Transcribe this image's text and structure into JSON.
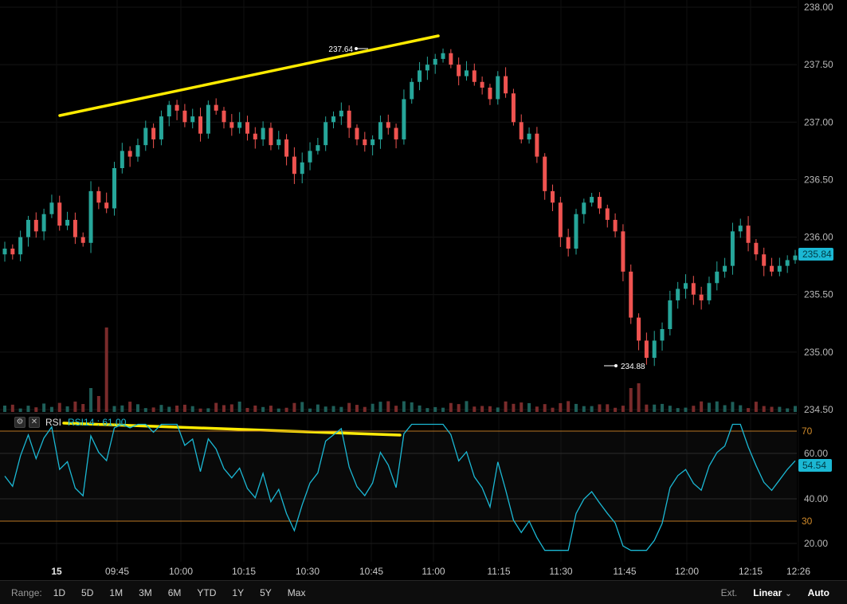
{
  "chart_data": {
    "type": "candlestick",
    "x": [
      "15",
      "09:45",
      "10:00",
      "10:15",
      "10:30",
      "10:45",
      "11:00",
      "11:15",
      "11:30",
      "11:45",
      "12:00",
      "12:15",
      "12:26"
    ],
    "y_ticks": [
      "238.00",
      "237.50",
      "237.00",
      "236.50",
      "236.00",
      "235.50",
      "235.00",
      "234.50"
    ],
    "ylim": [
      234.5,
      238.0
    ],
    "last_price": "235.84",
    "high_marker": "237.64",
    "low_marker": "234.88",
    "close_path": [
      [
        0,
        235.9
      ],
      [
        1,
        235.85
      ],
      [
        2,
        236.0
      ],
      [
        3,
        236.15
      ],
      [
        4,
        236.05
      ],
      [
        5,
        236.2
      ],
      [
        6,
        236.3
      ],
      [
        7,
        236.1
      ],
      [
        8,
        236.15
      ],
      [
        9,
        236.0
      ],
      [
        10,
        235.95
      ],
      [
        11,
        236.4
      ],
      [
        12,
        236.3
      ],
      [
        13,
        236.25
      ],
      [
        14,
        236.6
      ],
      [
        15,
        236.75
      ],
      [
        16,
        236.7
      ],
      [
        17,
        236.8
      ],
      [
        18,
        236.95
      ],
      [
        19,
        236.85
      ],
      [
        20,
        237.05
      ],
      [
        21,
        237.15
      ],
      [
        22,
        237.1
      ],
      [
        23,
        237.0
      ],
      [
        24,
        237.05
      ],
      [
        25,
        236.9
      ],
      [
        26,
        237.15
      ],
      [
        27,
        237.1
      ],
      [
        28,
        237.0
      ],
      [
        29,
        236.95
      ],
      [
        30,
        237.0
      ],
      [
        31,
        236.9
      ],
      [
        32,
        236.85
      ],
      [
        33,
        236.95
      ],
      [
        34,
        236.8
      ],
      [
        35,
        236.85
      ],
      [
        36,
        236.7
      ],
      [
        37,
        236.55
      ],
      [
        38,
        236.65
      ],
      [
        39,
        236.75
      ],
      [
        40,
        236.8
      ],
      [
        41,
        237.0
      ],
      [
        42,
        237.05
      ],
      [
        43,
        237.1
      ],
      [
        44,
        236.95
      ],
      [
        45,
        236.85
      ],
      [
        46,
        236.8
      ],
      [
        47,
        236.85
      ],
      [
        48,
        237.0
      ],
      [
        49,
        236.95
      ],
      [
        50,
        236.85
      ],
      [
        51,
        237.2
      ],
      [
        52,
        237.35
      ],
      [
        53,
        237.45
      ],
      [
        54,
        237.5
      ],
      [
        55,
        237.55
      ],
      [
        56,
        237.6
      ],
      [
        57,
        237.5
      ],
      [
        58,
        237.4
      ],
      [
        59,
        237.45
      ],
      [
        60,
        237.35
      ],
      [
        61,
        237.3
      ],
      [
        62,
        237.2
      ],
      [
        63,
        237.4
      ],
      [
        64,
        237.25
      ],
      [
        65,
        237.0
      ],
      [
        66,
        236.85
      ],
      [
        67,
        236.9
      ],
      [
        68,
        236.7
      ],
      [
        69,
        236.4
      ],
      [
        70,
        236.3
      ],
      [
        71,
        236.0
      ],
      [
        72,
        235.9
      ],
      [
        73,
        236.2
      ],
      [
        74,
        236.3
      ],
      [
        75,
        236.35
      ],
      [
        76,
        236.25
      ],
      [
        77,
        236.15
      ],
      [
        78,
        236.05
      ],
      [
        79,
        235.7
      ],
      [
        80,
        235.3
      ],
      [
        81,
        235.1
      ],
      [
        82,
        234.95
      ],
      [
        83,
        235.1
      ],
      [
        84,
        235.2
      ],
      [
        85,
        235.45
      ],
      [
        86,
        235.55
      ],
      [
        87,
        235.6
      ],
      [
        88,
        235.5
      ],
      [
        89,
        235.45
      ],
      [
        90,
        235.6
      ],
      [
        91,
        235.7
      ],
      [
        92,
        235.75
      ],
      [
        93,
        236.05
      ],
      [
        94,
        236.1
      ],
      [
        95,
        235.95
      ],
      [
        96,
        235.85
      ],
      [
        97,
        235.75
      ],
      [
        98,
        235.7
      ],
      [
        99,
        235.75
      ],
      [
        100,
        235.8
      ],
      [
        101,
        235.84
      ]
    ],
    "rsi": {
      "label": "RSI",
      "params": "RSI14 : 61.00",
      "levels": [
        "70",
        "60.00",
        "40.00",
        "30",
        "20.00"
      ],
      "last_value": "54.54",
      "ylim": [
        15,
        73
      ]
    }
  },
  "range_bar": {
    "label": "Range:",
    "buttons": [
      "1D",
      "5D",
      "1M",
      "3M",
      "6M",
      "YTD",
      "1Y",
      "5Y",
      "Max"
    ],
    "ext": "Ext.",
    "scale": "Linear",
    "auto": "Auto"
  },
  "colors": {
    "up": "#26a69a",
    "down": "#ef5350",
    "trendline": "#ffeb00",
    "rsi_line": "#1bb8d4",
    "level_70_30": "#b8731f"
  }
}
